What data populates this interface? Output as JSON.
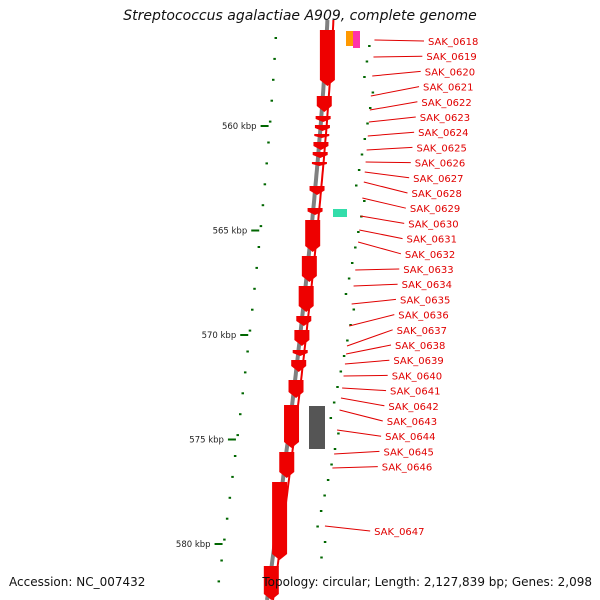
{
  "title": "Streptococcus agalactiae A909, complete genome",
  "accession": "Accession: NC_007432",
  "summary": "Topology: circular; Length: 2,127,839 bp; Genes: 2,098",
  "colors": {
    "cds": "#ee0000",
    "backbone": "#808080",
    "tick": "#006600",
    "label": "#e00000",
    "rna_1": "#ff9900",
    "rna_2": "#ff33aa",
    "misc": "#33ddaa",
    "repeat": "#555555"
  },
  "kbp_marks": [
    {
      "kbp": 560,
      "label": "560 kbp"
    },
    {
      "kbp": 565,
      "label": "565 kbp"
    },
    {
      "kbp": 570,
      "label": "570 kbp"
    },
    {
      "kbp": 575,
      "label": "575 kbp"
    },
    {
      "kbp": 580,
      "label": "580 kbp"
    }
  ],
  "genes": [
    "SAK_0618",
    "SAK_0619",
    "SAK_0620",
    "SAK_0621",
    "SAK_0622",
    "SAK_0623",
    "SAK_0624",
    "SAK_0625",
    "SAK_0626",
    "SAK_0627",
    "SAK_0628",
    "SAK_0629",
    "SAK_0630",
    "SAK_0631",
    "SAK_0632",
    "SAK_0633",
    "SAK_0634",
    "SAK_0635",
    "SAK_0636",
    "SAK_0637",
    "SAK_0638",
    "SAK_0639",
    "SAK_0640",
    "SAK_0641",
    "SAK_0642",
    "SAK_0643",
    "SAK_0644",
    "SAK_0645",
    "SAK_0646",
    "SAK_0647"
  ]
}
